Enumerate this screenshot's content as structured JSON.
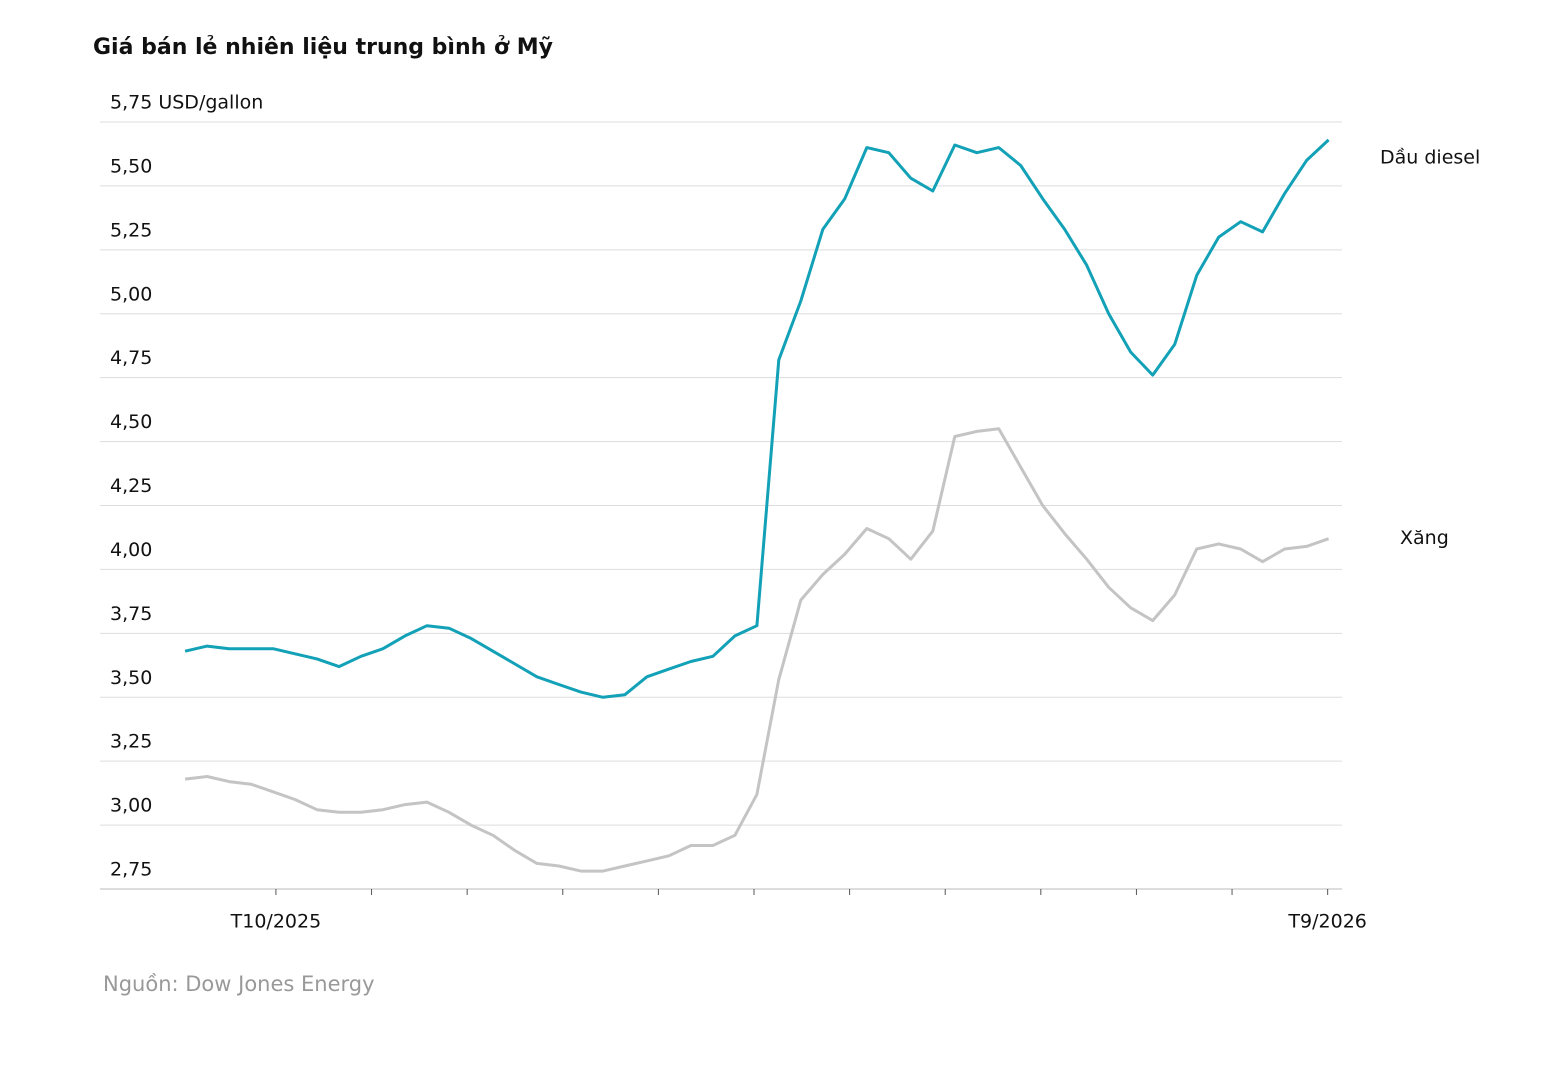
{
  "chart_data": {
    "type": "line",
    "title": "Giá bán lẻ nhiên liệu trung bình ở Mỹ",
    "source": "Nguồn: Dow Jones Energy",
    "x": [
      -0.95,
      -0.72,
      -0.49,
      -0.26,
      -0.03,
      0.2,
      0.43,
      0.66,
      0.89,
      1.12,
      1.35,
      1.58,
      1.81,
      2.04,
      2.27,
      2.5,
      2.73,
      2.96,
      3.19,
      3.42,
      3.65,
      3.88,
      4.11,
      4.34,
      4.57,
      4.8,
      5.03,
      5.26,
      5.49,
      5.72,
      5.95,
      6.18,
      6.41,
      6.64,
      6.87,
      7.1,
      7.33,
      7.56,
      7.79,
      8.02,
      8.25,
      8.48,
      8.71,
      8.94,
      9.17,
      9.4,
      9.63,
      9.86,
      10.09,
      10.32,
      10.55,
      10.78,
      11.01
    ],
    "series": [
      {
        "name": "Dầu diesel",
        "color": "#12a1b7",
        "values": [
          3.68,
          3.7,
          3.69,
          3.69,
          3.69,
          3.67,
          3.65,
          3.62,
          3.66,
          3.69,
          3.74,
          3.78,
          3.77,
          3.73,
          3.68,
          3.63,
          3.58,
          3.55,
          3.52,
          3.5,
          3.51,
          3.58,
          3.61,
          3.64,
          3.66,
          3.74,
          3.78,
          4.82,
          5.05,
          5.33,
          5.45,
          5.65,
          5.63,
          5.53,
          5.48,
          5.66,
          5.63,
          5.65,
          5.58,
          5.45,
          5.33,
          5.19,
          5.0,
          4.85,
          4.76,
          4.88,
          5.15,
          5.3,
          5.36,
          5.32,
          5.47,
          5.6,
          5.68
        ]
      },
      {
        "name": "Xăng",
        "color": "#c4c4c4",
        "values": [
          3.18,
          3.19,
          3.17,
          3.16,
          3.13,
          3.1,
          3.06,
          3.05,
          3.05,
          3.06,
          3.08,
          3.09,
          3.05,
          3.0,
          2.96,
          2.9,
          2.85,
          2.84,
          2.82,
          2.82,
          2.84,
          2.86,
          2.88,
          2.92,
          2.92,
          2.96,
          3.12,
          3.57,
          3.88,
          3.98,
          4.06,
          4.16,
          4.12,
          4.04,
          4.15,
          4.52,
          4.54,
          4.55,
          4.4,
          4.25,
          4.14,
          4.04,
          3.93,
          3.85,
          3.8,
          3.9,
          4.08,
          4.1,
          4.08,
          4.03,
          4.08,
          4.09,
          4.12
        ]
      }
    ],
    "xlim": [
      -1.84,
      11.15
    ],
    "xticks": [
      {
        "value": 0,
        "label": "T10/2025"
      },
      {
        "value": 11,
        "label": "T9/2026"
      }
    ],
    "xminor_ticks": [
      1,
      2,
      3,
      4,
      5,
      6,
      7,
      8,
      9,
      10
    ],
    "ylim": [
      2.75,
      5.75
    ],
    "yticks": [
      {
        "value": 2.75,
        "label": "2,75"
      },
      {
        "value": 3,
        "label": "3,00"
      },
      {
        "value": 3.25,
        "label": "3,25"
      },
      {
        "value": 3.5,
        "label": "3,50"
      },
      {
        "value": 3.75,
        "label": "3,75"
      },
      {
        "value": 4,
        "label": "4,00"
      },
      {
        "value": 4.25,
        "label": "4,25"
      },
      {
        "value": 4.5,
        "label": "4,50"
      },
      {
        "value": 4.75,
        "label": "4,75"
      },
      {
        "value": 5,
        "label": "5,00"
      },
      {
        "value": 5.25,
        "label": "5,25"
      },
      {
        "value": 5.5,
        "label": "5,50"
      },
      {
        "value": 5.75,
        "label": "5,75 USD/gallon"
      }
    ],
    "grid": true
  }
}
